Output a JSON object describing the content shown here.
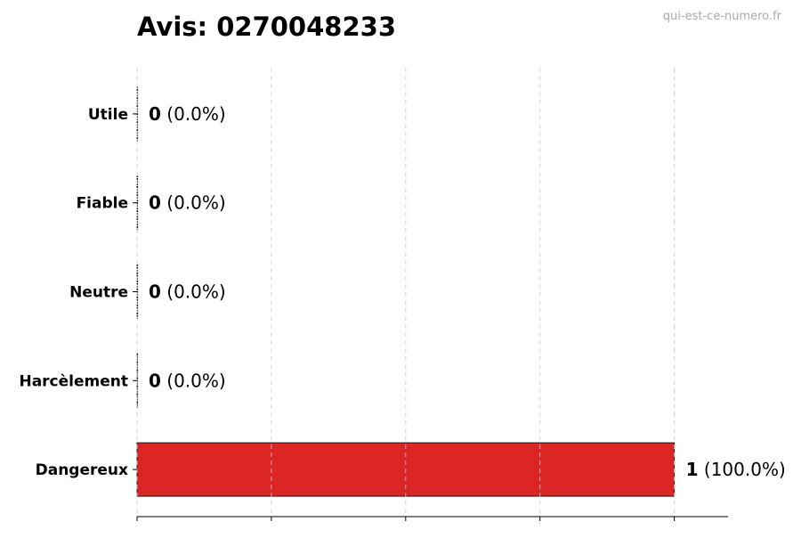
{
  "chart_data": {
    "type": "bar",
    "orientation": "horizontal",
    "title": "Avis: 0270048233",
    "watermark": "qui-est-ce-numero.fr",
    "categories": [
      "Utile",
      "Fiable",
      "Neutre",
      "Harcèlement",
      "Dangereux"
    ],
    "values": [
      0,
      0,
      0,
      0,
      1
    ],
    "value_labels": [
      "0",
      "0",
      "0",
      "0",
      "1"
    ],
    "percent_labels": [
      "(0.0%)",
      "(0.0%)",
      "(0.0%)",
      "(0.0%)",
      "(100.0%)"
    ],
    "xlim": [
      0,
      1.1
    ],
    "xticks": [
      0,
      0.25,
      0.5,
      0.75,
      1
    ],
    "grid": "x-dashed",
    "colors": {
      "bar": "#dc2626",
      "edge": "#1a1a1a",
      "grid": "#cccccc",
      "watermark": "#aaaaaa"
    }
  }
}
